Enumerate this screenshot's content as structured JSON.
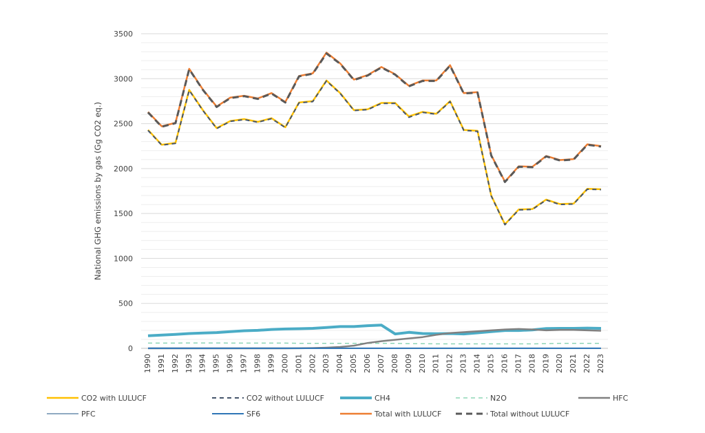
{
  "chart_data": {
    "type": "line",
    "title": "",
    "xlabel": "",
    "ylabel": "National GHG emissions by gas (Gg CO2 eq.)",
    "ylim": [
      0,
      3500
    ],
    "yticks": [
      0,
      500,
      1000,
      1500,
      2000,
      2500,
      3000,
      3500
    ],
    "grid": true,
    "legend_position": "bottom",
    "x": [
      "1990",
      "1991",
      "1992",
      "1993",
      "1994",
      "1995",
      "1996",
      "1997",
      "1998",
      "1999",
      "2000",
      "2001",
      "2002",
      "2003",
      "2004",
      "2005",
      "2006",
      "2007",
      "2008",
      "2009",
      "2010",
      "2011",
      "2012",
      "2013",
      "2014",
      "2015",
      "2016",
      "2017",
      "2018",
      "2019",
      "2020",
      "2021",
      "2022",
      "2023"
    ],
    "series": [
      {
        "name": "CO2 with LULUCF",
        "color": "#FFC000",
        "dash": "solid",
        "width": 2.5,
        "values": [
          2430,
          2265,
          2285,
          2875,
          2650,
          2450,
          2530,
          2550,
          2520,
          2560,
          2460,
          2735,
          2750,
          2980,
          2840,
          2650,
          2660,
          2730,
          2730,
          2580,
          2630,
          2610,
          2750,
          2430,
          2420,
          1700,
          1380,
          1545,
          1550,
          1655,
          1605,
          1610,
          1775,
          1770
        ]
      },
      {
        "name": "CO2 without LULUCF",
        "color": "#44546A",
        "dash": "dashed",
        "width": 2,
        "values": [
          2425,
          2260,
          2280,
          2870,
          2645,
          2445,
          2525,
          2545,
          2515,
          2555,
          2455,
          2730,
          2745,
          2975,
          2835,
          2645,
          2655,
          2725,
          2725,
          2570,
          2625,
          2605,
          2745,
          2425,
          2415,
          1695,
          1375,
          1540,
          1545,
          1650,
          1600,
          1605,
          1770,
          1765
        ]
      },
      {
        "name": "CH4",
        "color": "#4BACC6",
        "dash": "solid",
        "width": 4,
        "values": [
          140,
          148,
          155,
          165,
          170,
          175,
          185,
          195,
          200,
          210,
          215,
          218,
          222,
          232,
          242,
          242,
          252,
          258,
          160,
          178,
          165,
          162,
          165,
          160,
          172,
          185,
          198,
          198,
          205,
          220,
          222,
          222,
          225,
          222
        ]
      },
      {
        "name": "N2O",
        "color": "#8DD5B5",
        "dash": "dashed",
        "width": 1.5,
        "values": [
          58,
          58,
          58,
          60,
          60,
          60,
          58,
          58,
          58,
          58,
          58,
          56,
          56,
          56,
          56,
          56,
          55,
          55,
          55,
          52,
          52,
          50,
          50,
          50,
          50,
          50,
          50,
          50,
          50,
          52,
          55,
          55,
          55,
          55
        ]
      },
      {
        "name": "HFC",
        "color": "#808080",
        "dash": "solid",
        "width": 2.5,
        "values": [
          0,
          0,
          0,
          0,
          0,
          0,
          0,
          0,
          0,
          0,
          0,
          1,
          3,
          8,
          15,
          30,
          60,
          80,
          95,
          110,
          125,
          150,
          170,
          180,
          190,
          200,
          210,
          215,
          210,
          200,
          205,
          205,
          200,
          195
        ]
      },
      {
        "name": "PFC",
        "color": "#8EA9C1",
        "dash": "solid",
        "width": 2,
        "values": [
          0,
          0,
          0,
          0,
          0,
          0,
          0,
          0,
          0,
          0,
          0,
          0,
          0,
          0,
          0,
          0,
          0,
          0,
          0,
          0,
          0,
          0,
          0,
          0,
          0,
          0,
          0,
          0,
          0,
          0,
          0,
          0,
          0,
          0
        ]
      },
      {
        "name": "SF6",
        "color": "#2E75B6",
        "dash": "solid",
        "width": 2,
        "values": [
          1,
          1,
          1,
          1,
          1,
          1,
          1,
          1,
          1,
          1,
          1,
          1,
          1,
          1,
          1,
          1,
          1,
          1,
          1,
          1,
          1,
          1,
          1,
          1,
          1,
          1,
          1,
          1,
          1,
          1,
          1,
          1,
          1,
          1
        ]
      },
      {
        "name": "Total with LULUCF",
        "color": "#ED7D31",
        "dash": "solid",
        "width": 2.5,
        "values": [
          2630,
          2470,
          2510,
          3110,
          2880,
          2690,
          2790,
          2810,
          2780,
          2840,
          2740,
          3030,
          3060,
          3290,
          3170,
          2990,
          3040,
          3130,
          3050,
          2920,
          2980,
          2980,
          3150,
          2840,
          2850,
          2150,
          1855,
          2025,
          2020,
          2140,
          2095,
          2105,
          2270,
          2250
        ]
      },
      {
        "name": "Total without LULUCF",
        "color": "#595959",
        "dash": "dashed",
        "width": 3,
        "values": [
          2625,
          2465,
          2505,
          3105,
          2875,
          2685,
          2785,
          2805,
          2775,
          2835,
          2735,
          3025,
          3055,
          3280,
          3165,
          2985,
          3035,
          3125,
          3045,
          2915,
          2975,
          2975,
          3145,
          2835,
          2845,
          2145,
          1850,
          2020,
          2015,
          2135,
          2090,
          2100,
          2265,
          2245
        ]
      }
    ]
  }
}
